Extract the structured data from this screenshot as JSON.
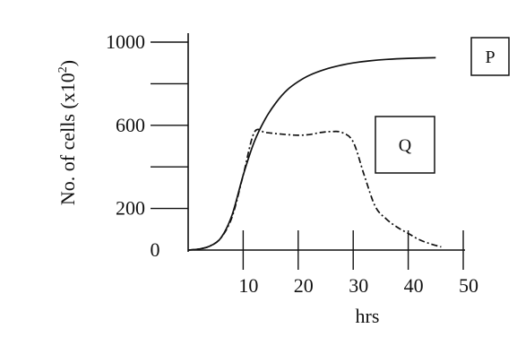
{
  "chart_data": {
    "type": "line",
    "ylabel": "No. of cells (x10",
    "ylabel_superscript": "2",
    "ylabel_suffix": ")",
    "xlabel": "hrs",
    "xlim": [
      0,
      50
    ],
    "ylim": [
      0,
      1000
    ],
    "x_ticks": [
      10,
      20,
      30,
      40,
      50
    ],
    "x_tick_labels": [
      "10",
      "20",
      "30",
      "40",
      "50"
    ],
    "y_ticks": [
      200,
      600,
      1000
    ],
    "y_tick_labels": [
      "200",
      "600",
      "1000"
    ],
    "y_origin_label": "0",
    "y_minor_ticks": [
      400,
      800
    ],
    "series": [
      {
        "name": "P",
        "style": "solid",
        "x": [
          0,
          2,
          4,
          6,
          8,
          10,
          12,
          14,
          16,
          18,
          20,
          22,
          25,
          28,
          30,
          33,
          36,
          40,
          45
        ],
        "y": [
          0,
          5,
          20,
          60,
          170,
          360,
          520,
          630,
          710,
          770,
          810,
          840,
          870,
          890,
          900,
          910,
          917,
          922,
          925
        ]
      },
      {
        "name": "Q",
        "style": "dash-dot",
        "x": [
          0,
          2,
          4,
          6,
          8,
          10,
          12,
          14,
          16,
          18,
          20,
          22,
          24,
          26,
          28,
          30,
          32,
          34,
          36,
          38,
          40,
          42,
          44,
          46
        ],
        "y": [
          0,
          5,
          20,
          60,
          160,
          360,
          565,
          565,
          560,
          555,
          552,
          555,
          565,
          570,
          565,
          520,
          360,
          210,
          150,
          110,
          80,
          50,
          30,
          15
        ]
      }
    ]
  }
}
